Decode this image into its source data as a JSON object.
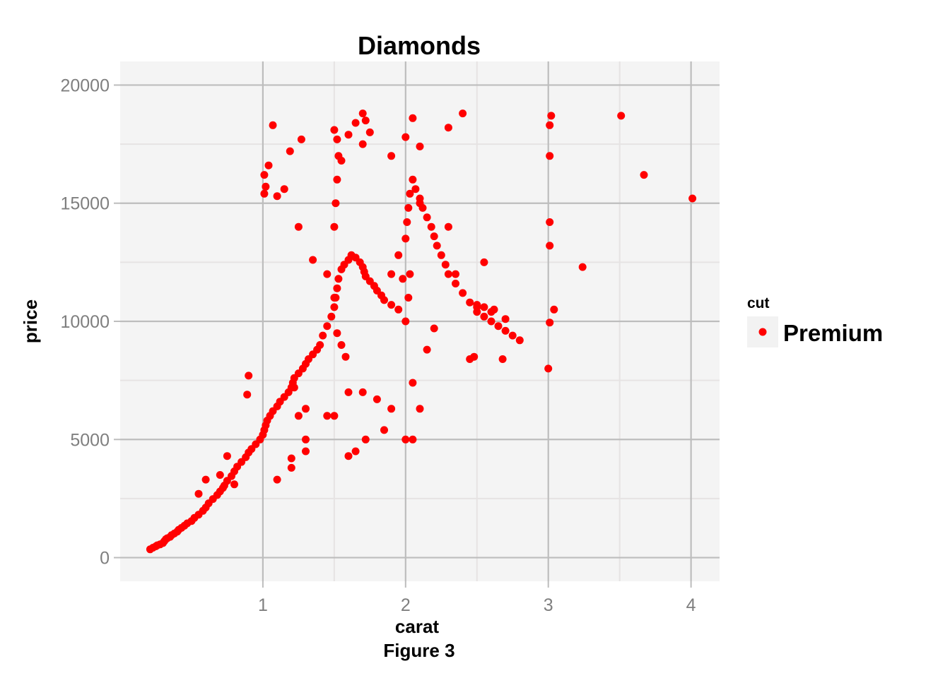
{
  "chart_data": {
    "type": "scatter",
    "title": "Diamonds",
    "xlabel": "carat",
    "caption": "Figure 3",
    "ylabel": "price",
    "xlim": [
      0.0,
      4.2
    ],
    "ylim": [
      -1000,
      21000
    ],
    "x_ticks": [
      1,
      2,
      3,
      4
    ],
    "x_tick_labels": [
      "1",
      "2",
      "3",
      "4"
    ],
    "y_ticks": [
      0,
      5000,
      10000,
      15000,
      20000
    ],
    "y_tick_labels": [
      "0",
      "5000",
      "10000",
      "15000",
      "20000"
    ],
    "grid": true,
    "legend": {
      "title": "cut",
      "position": "right",
      "entries": [
        {
          "label": "Premium",
          "color": "#ff0000"
        }
      ]
    },
    "colors": {
      "point": "#ff0000",
      "panel_background": "#f4f4f4",
      "major_grid": "#bdbdbd",
      "minor_grid": "#e6e3e3"
    },
    "series": [
      {
        "name": "Premium",
        "x": [
          0.21,
          0.23,
          0.25,
          0.26,
          0.28,
          0.3,
          0.31,
          0.32,
          0.33,
          0.35,
          0.36,
          0.38,
          0.4,
          0.41,
          0.43,
          0.45,
          0.47,
          0.5,
          0.52,
          0.55,
          0.58,
          0.6,
          0.62,
          0.65,
          0.68,
          0.7,
          0.72,
          0.73,
          0.75,
          0.78,
          0.8,
          0.82,
          0.85,
          0.88,
          0.9,
          0.92,
          0.95,
          0.98,
          1.0,
          1.01,
          1.02,
          1.03,
          1.05,
          1.07,
          1.1,
          1.12,
          1.15,
          1.18,
          1.2,
          1.21,
          1.22,
          1.25,
          1.28,
          1.3,
          1.32,
          1.35,
          1.38,
          1.4,
          1.42,
          1.45,
          1.48,
          1.5,
          1.51,
          1.52,
          1.53,
          1.55,
          1.57,
          1.6,
          1.62,
          1.65,
          1.68,
          1.7,
          1.71,
          1.72,
          1.75,
          1.78,
          1.8,
          1.83,
          1.85,
          1.9,
          1.95,
          2.0,
          2.01,
          2.02,
          2.03,
          2.05,
          2.07,
          2.1,
          2.12,
          2.15,
          2.18,
          2.2,
          2.22,
          2.25,
          2.28,
          2.3,
          2.35,
          2.4,
          2.45,
          2.5,
          2.55,
          2.6,
          2.65,
          2.7,
          2.75,
          2.8,
          3.0,
          3.01,
          3.01,
          3.01,
          3.01,
          3.01,
          3.02,
          3.04,
          3.24,
          3.51,
          3.67,
          4.01,
          1.01,
          1.02,
          1.01,
          1.04,
          1.07,
          1.19,
          1.27,
          0.9,
          0.89,
          1.3,
          1.95,
          1.98,
          2.0,
          2.05,
          2.1,
          2.48,
          2.68,
          2.5,
          2.35,
          1.5,
          1.52,
          1.6,
          1.65,
          1.7,
          1.72,
          1.55,
          1.15,
          1.1,
          1.25,
          1.35,
          1.45,
          1.5,
          2.55,
          2.6,
          2.62,
          2.7,
          2.55,
          2.5,
          2.45,
          1.2,
          1.3,
          1.45,
          1.6,
          1.8,
          1.85,
          1.9,
          2.05,
          2.15,
          2.2,
          0.6,
          0.55,
          0.7,
          0.75,
          0.8,
          1.1,
          1.2,
          1.3,
          1.5,
          1.7,
          1.9,
          2.1,
          2.3,
          2.4,
          1.52,
          1.55,
          1.58,
          2.0,
          2.02,
          2.03,
          1.5,
          1.51,
          1.52,
          1.53,
          1.7,
          1.75,
          1.9,
          2.0,
          2.05,
          2.1,
          1.22,
          1.25,
          1.6,
          1.65,
          1.72,
          2.3
        ],
        "y": [
          350,
          420,
          480,
          520,
          560,
          620,
          700,
          780,
          820,
          880,
          950,
          1020,
          1100,
          1180,
          1260,
          1350,
          1450,
          1550,
          1680,
          1820,
          1980,
          2120,
          2300,
          2480,
          2650,
          2800,
          2950,
          3050,
          3250,
          3450,
          3650,
          3850,
          4050,
          4250,
          4450,
          4600,
          4800,
          5000,
          5200,
          5400,
          5600,
          5800,
          6000,
          6200,
          6400,
          6600,
          6800,
          7000,
          7200,
          7400,
          7600,
          7800,
          8000,
          8200,
          8400,
          8600,
          8800,
          9000,
          9400,
          9800,
          10200,
          10600,
          11000,
          11400,
          11800,
          12200,
          12400,
          12600,
          12800,
          12700,
          12500,
          12300,
          12100,
          11900,
          11700,
          11500,
          11300,
          11100,
          10900,
          10700,
          10500,
          13500,
          14200,
          14800,
          15400,
          16000,
          15600,
          15200,
          14800,
          14400,
          14000,
          13600,
          13200,
          12800,
          12400,
          12000,
          11600,
          11200,
          10800,
          10400,
          10200,
          10000,
          9800,
          9600,
          9400,
          9200,
          8000,
          9950,
          13200,
          14200,
          17000,
          18300,
          18700,
          10500,
          12300,
          18700,
          16200,
          15200,
          16200,
          15700,
          15400,
          16600,
          18300,
          17200,
          17700,
          7700,
          6900,
          6300,
          12800,
          11800,
          5000,
          5000,
          6300,
          8500,
          8400,
          10700,
          12000,
          18100,
          17700,
          17900,
          18400,
          18800,
          18500,
          16800,
          15600,
          15300,
          14000,
          12600,
          12000,
          11000,
          10600,
          10400,
          10500,
          10100,
          12500,
          10600,
          8400,
          4200,
          5000,
          6000,
          7000,
          6700,
          5400,
          6300,
          7400,
          8800,
          9700,
          3300,
          2700,
          3500,
          4300,
          3100,
          3300,
          3800,
          4500,
          6000,
          7000,
          12000,
          15000,
          18200,
          18800,
          9500,
          9000,
          8500,
          10000,
          11000,
          12000,
          14000,
          15000,
          16000,
          17000,
          17500,
          18000,
          17000,
          17800,
          18600,
          17400,
          7200,
          6000,
          4300,
          4500,
          5000,
          14000
        ]
      }
    ]
  }
}
